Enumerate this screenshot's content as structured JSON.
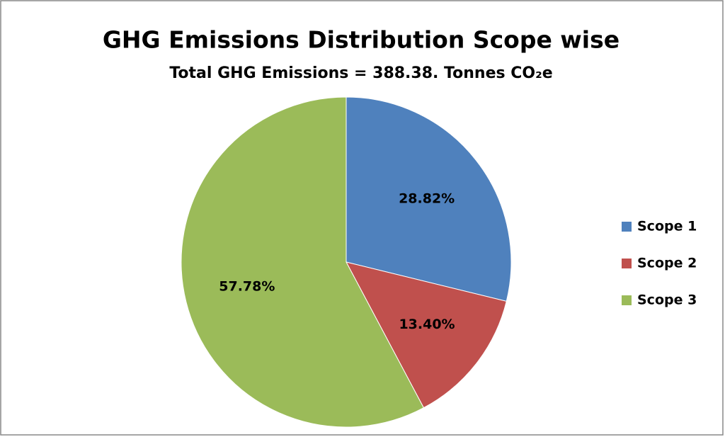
{
  "chart_data": {
    "type": "pie",
    "title": "GHG Emissions Distribution Scope wise",
    "subtitle": "Total GHG Emissions = 388.38. Tonnes CO₂e",
    "categories": [
      "Scope 1",
      "Scope 2",
      "Scope 3"
    ],
    "values": [
      28.82,
      13.4,
      57.78
    ],
    "value_labels": [
      "28.82%",
      "13.40%",
      "57.78%"
    ],
    "colors": [
      "#4f81bd",
      "#c0504d",
      "#9bbb59"
    ],
    "legend": "right"
  }
}
